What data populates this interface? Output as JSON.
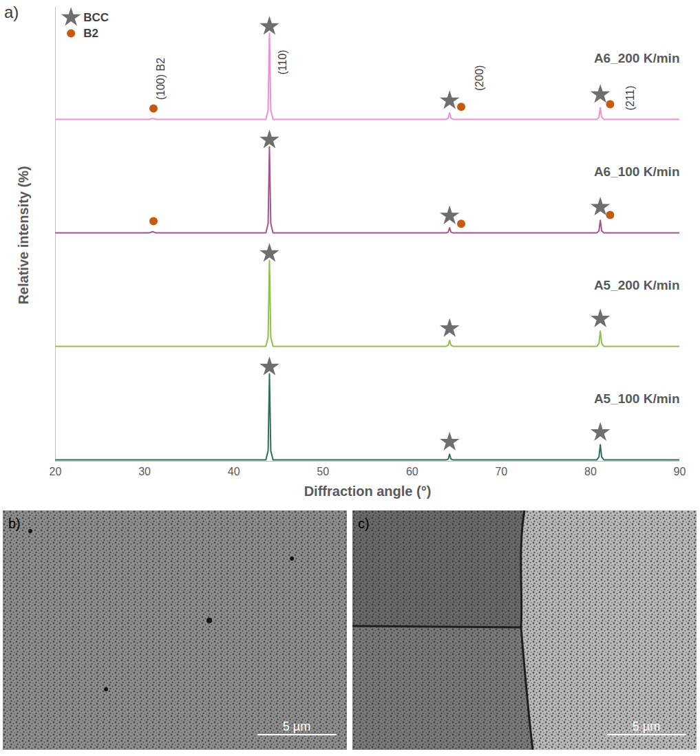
{
  "chart_data": {
    "type": "line",
    "panel_label": "a)",
    "y_label": "Relative intensity (%)",
    "x_label": "Diffraction angle (°)",
    "xlim": [
      20,
      90
    ],
    "xticks": [
      20,
      30,
      40,
      50,
      60,
      70,
      80,
      90
    ],
    "ylim": [
      0,
      130
    ],
    "tick_labels": "x",
    "grid": false,
    "legend": "top-left",
    "phases": [
      {
        "name": "BCC",
        "color": "#6e6e6e",
        "marker": "star"
      },
      {
        "name": "B2",
        "color": "#c55a11",
        "marker": "circle"
      }
    ],
    "peak_labels": [
      {
        "x": 31.8,
        "y": 48,
        "text": "(100) B2"
      },
      {
        "x": 45.5,
        "y": 67,
        "text": "(110)"
      },
      {
        "x": 67.6,
        "y": 49,
        "text": "(200)"
      },
      {
        "x": 84.5,
        "y": 26,
        "text": "(211)"
      }
    ],
    "x": [
      20,
      30.5,
      30.9,
      31.3,
      43.6,
      43.85,
      44.0,
      44.15,
      44.4,
      63.8,
      64.05,
      64.2,
      64.35,
      64.6,
      80.7,
      80.95,
      81.1,
      81.25,
      81.5,
      90
    ],
    "series": [
      {
        "name": "A6_200 K/min",
        "color": "#ee8fd3",
        "values": [
          1.5,
          1.5,
          2.5,
          1.5,
          1.5,
          12,
          100,
          12,
          1.5,
          1.5,
          3,
          9,
          3,
          1.5,
          1.5,
          4,
          15,
          4,
          1.5,
          1.5
        ],
        "phase_markers": [
          {
            "phase": "BCC",
            "x": 44.0,
            "y": 108
          },
          {
            "phase": "BCC",
            "x": 64.2,
            "y": 23
          },
          {
            "phase": "BCC",
            "x": 81.1,
            "y": 30
          },
          {
            "phase": "B2",
            "x": 31.0,
            "y": 14
          },
          {
            "phase": "B2",
            "x": 65.5,
            "y": 16
          },
          {
            "phase": "B2",
            "x": 82.2,
            "y": 19
          }
        ]
      },
      {
        "name": "A6_100 K/min",
        "color": "#a3548e",
        "values": [
          1.5,
          1.5,
          3,
          1.5,
          1.5,
          12,
          100,
          12,
          1.5,
          1.5,
          2.5,
          7.5,
          2.5,
          1.5,
          1.5,
          4,
          16,
          4,
          1.5,
          1.5
        ],
        "phase_markers": [
          {
            "phase": "BCC",
            "x": 44.0,
            "y": 108
          },
          {
            "phase": "BCC",
            "x": 64.2,
            "y": 21
          },
          {
            "phase": "BCC",
            "x": 81.1,
            "y": 31
          },
          {
            "phase": "B2",
            "x": 31.0,
            "y": 15
          },
          {
            "phase": "B2",
            "x": 65.5,
            "y": 12
          },
          {
            "phase": "B2",
            "x": 82.2,
            "y": 22
          }
        ]
      },
      {
        "name": "A5_200 K/min",
        "color": "#8dc04c",
        "values": [
          1.5,
          1.5,
          1.5,
          1.5,
          1.5,
          12,
          100,
          12,
          1.5,
          1.5,
          3,
          8.5,
          3,
          1.5,
          1.5,
          5,
          19,
          5,
          1.5,
          1.5
        ],
        "phase_markers": [
          {
            "phase": "BCC",
            "x": 44.0,
            "y": 108
          },
          {
            "phase": "BCC",
            "x": 64.2,
            "y": 22
          },
          {
            "phase": "BCC",
            "x": 81.1,
            "y": 33
          }
        ]
      },
      {
        "name": "A5_100 K/min",
        "color": "#2f6e5c",
        "values": [
          1.5,
          1.5,
          1.5,
          1.5,
          1.5,
          12,
          100,
          12,
          1.5,
          1.5,
          2.5,
          8,
          2.5,
          1.5,
          1.5,
          5,
          19,
          5,
          1.5,
          1.5
        ],
        "phase_markers": [
          {
            "phase": "BCC",
            "x": 44.0,
            "y": 108
          },
          {
            "phase": "BCC",
            "x": 64.2,
            "y": 22
          },
          {
            "phase": "BCC",
            "x": 81.1,
            "y": 33
          }
        ]
      }
    ]
  },
  "micrographs": [
    {
      "label": "b)",
      "scale_bar": "5 µm"
    },
    {
      "label": "c)",
      "scale_bar": "5 µm"
    }
  ]
}
